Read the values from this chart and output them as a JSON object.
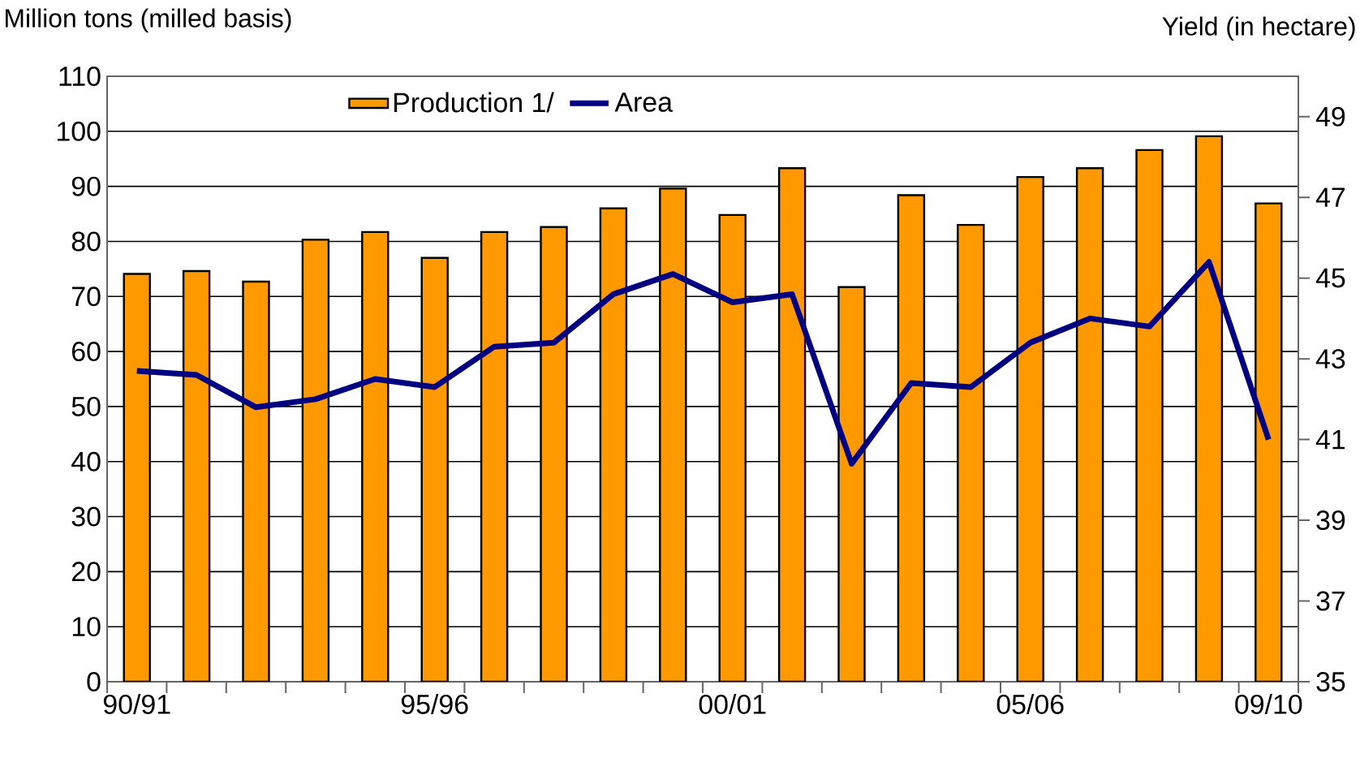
{
  "chart_data": {
    "type": "bar",
    "ylabel": "Million tons (milled basis)",
    "y2label": "Yield (in hectare)",
    "categories": [
      "90/91",
      null,
      null,
      null,
      null,
      "95/96",
      null,
      null,
      null,
      null,
      "00/01",
      null,
      null,
      null,
      null,
      "05/06",
      null,
      null,
      null,
      "09/10"
    ],
    "series": [
      {
        "name": "Production 1/",
        "color": "#ff9900",
        "values": [
          74.1,
          74.6,
          72.7,
          80.3,
          81.7,
          77.0,
          81.7,
          82.6,
          86.0,
          89.6,
          84.8,
          93.3,
          71.7,
          88.4,
          83.0,
          91.7,
          93.3,
          96.6,
          99.1,
          86.9
        ]
      },
      {
        "name": "Area",
        "type": "line",
        "axis": "y2",
        "color": "#000080",
        "values": [
          42.7,
          42.6,
          41.8,
          42.0,
          42.5,
          42.3,
          43.3,
          43.4,
          44.6,
          45.1,
          44.4,
          44.6,
          40.4,
          42.4,
          42.3,
          43.4,
          44.0,
          43.8,
          45.4,
          41.0
        ]
      }
    ],
    "ylim": [
      0,
      110
    ],
    "yticks": [
      0,
      10,
      20,
      30,
      40,
      50,
      60,
      70,
      80,
      90,
      100,
      110
    ],
    "y2lim": [
      35,
      50
    ],
    "y2ticks": [
      35,
      37,
      39,
      41,
      43,
      45,
      47,
      49
    ],
    "grid": "y",
    "legend": "top"
  }
}
